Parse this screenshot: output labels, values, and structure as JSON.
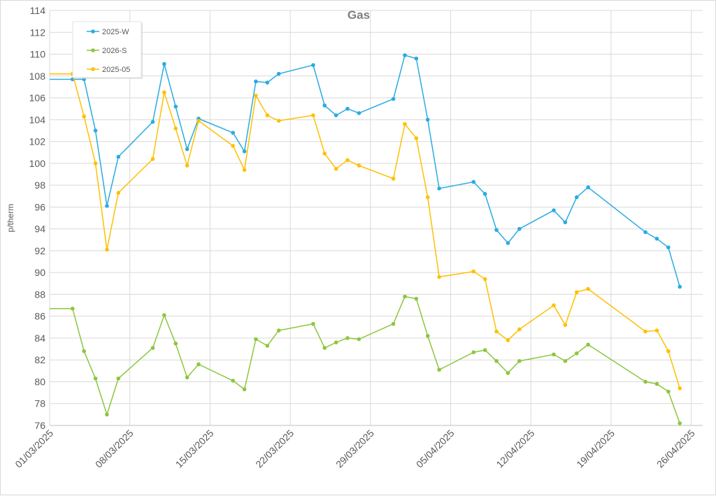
{
  "chart_data": {
    "type": "line",
    "title": "Gas",
    "ylabel": "p/therm",
    "xlabel": "",
    "ylim": [
      76,
      114
    ],
    "yticks": [
      76,
      78,
      80,
      82,
      84,
      86,
      88,
      90,
      92,
      94,
      96,
      98,
      100,
      102,
      104,
      106,
      108,
      110,
      112,
      114
    ],
    "xlim": [
      "2025-03-01",
      "2025-04-27"
    ],
    "x_tick_labels": [
      "01/03/2025",
      "08/03/2025",
      "15/03/2025",
      "22/03/2025",
      "29/03/2025",
      "05/04/2025",
      "12/04/2025",
      "19/04/2025",
      "26/04/2025"
    ],
    "x_tick_dates": [
      "2025-03-01",
      "2025-03-08",
      "2025-03-15",
      "2025-03-22",
      "2025-03-29",
      "2025-04-05",
      "2025-04-12",
      "2025-04-19",
      "2025-04-26"
    ],
    "grid": true,
    "legend_position": "top-left",
    "series": [
      {
        "name": "2025-W",
        "color": "#29abe2",
        "points": [
          {
            "x": "2025-03-03",
            "y": 107.7
          },
          {
            "x": "2025-03-04",
            "y": 107.7
          },
          {
            "x": "2025-03-05",
            "y": 103.0
          },
          {
            "x": "2025-03-06",
            "y": 96.1
          },
          {
            "x": "2025-03-07",
            "y": 100.6
          },
          {
            "x": "2025-03-10",
            "y": 103.8
          },
          {
            "x": "2025-03-11",
            "y": 109.1
          },
          {
            "x": "2025-03-12",
            "y": 105.2
          },
          {
            "x": "2025-03-13",
            "y": 101.3
          },
          {
            "x": "2025-03-14",
            "y": 104.1
          },
          {
            "x": "2025-03-17",
            "y": 102.8
          },
          {
            "x": "2025-03-18",
            "y": 101.1
          },
          {
            "x": "2025-03-19",
            "y": 107.5
          },
          {
            "x": "2025-03-20",
            "y": 107.4
          },
          {
            "x": "2025-03-21",
            "y": 108.2
          },
          {
            "x": "2025-03-24",
            "y": 109.0
          },
          {
            "x": "2025-03-25",
            "y": 105.3
          },
          {
            "x": "2025-03-26",
            "y": 104.4
          },
          {
            "x": "2025-03-27",
            "y": 105.0
          },
          {
            "x": "2025-03-28",
            "y": 104.6
          },
          {
            "x": "2025-03-31",
            "y": 105.9
          },
          {
            "x": "2025-04-01",
            "y": 109.9
          },
          {
            "x": "2025-04-02",
            "y": 109.6
          },
          {
            "x": "2025-04-03",
            "y": 104.0
          },
          {
            "x": "2025-04-04",
            "y": 97.7
          },
          {
            "x": "2025-04-07",
            "y": 98.3
          },
          {
            "x": "2025-04-08",
            "y": 97.2
          },
          {
            "x": "2025-04-09",
            "y": 93.9
          },
          {
            "x": "2025-04-10",
            "y": 92.7
          },
          {
            "x": "2025-04-11",
            "y": 94.0
          },
          {
            "x": "2025-04-14",
            "y": 95.7
          },
          {
            "x": "2025-04-15",
            "y": 94.6
          },
          {
            "x": "2025-04-16",
            "y": 96.9
          },
          {
            "x": "2025-04-17",
            "y": 97.8
          },
          {
            "x": "2025-04-22",
            "y": 93.7
          },
          {
            "x": "2025-04-23",
            "y": 93.1
          },
          {
            "x": "2025-04-24",
            "y": 92.3
          },
          {
            "x": "2025-04-25",
            "y": 88.7
          }
        ]
      },
      {
        "name": "2026-S",
        "color": "#8cc63f",
        "points": [
          {
            "x": "2025-03-03",
            "y": 86.7
          },
          {
            "x": "2025-03-04",
            "y": 82.8
          },
          {
            "x": "2025-03-05",
            "y": 80.3
          },
          {
            "x": "2025-03-06",
            "y": 77.0
          },
          {
            "x": "2025-03-07",
            "y": 80.3
          },
          {
            "x": "2025-03-10",
            "y": 83.1
          },
          {
            "x": "2025-03-11",
            "y": 86.1
          },
          {
            "x": "2025-03-12",
            "y": 83.5
          },
          {
            "x": "2025-03-13",
            "y": 80.4
          },
          {
            "x": "2025-03-14",
            "y": 81.6
          },
          {
            "x": "2025-03-17",
            "y": 80.1
          },
          {
            "x": "2025-03-18",
            "y": 79.3
          },
          {
            "x": "2025-03-19",
            "y": 83.9
          },
          {
            "x": "2025-03-20",
            "y": 83.3
          },
          {
            "x": "2025-03-21",
            "y": 84.7
          },
          {
            "x": "2025-03-24",
            "y": 85.3
          },
          {
            "x": "2025-03-25",
            "y": 83.1
          },
          {
            "x": "2025-03-26",
            "y": 83.6
          },
          {
            "x": "2025-03-27",
            "y": 84.0
          },
          {
            "x": "2025-03-28",
            "y": 83.9
          },
          {
            "x": "2025-03-31",
            "y": 85.3
          },
          {
            "x": "2025-04-01",
            "y": 87.8
          },
          {
            "x": "2025-04-02",
            "y": 87.6
          },
          {
            "x": "2025-04-03",
            "y": 84.2
          },
          {
            "x": "2025-04-04",
            "y": 81.1
          },
          {
            "x": "2025-04-07",
            "y": 82.7
          },
          {
            "x": "2025-04-08",
            "y": 82.9
          },
          {
            "x": "2025-04-09",
            "y": 81.9
          },
          {
            "x": "2025-04-10",
            "y": 80.8
          },
          {
            "x": "2025-04-11",
            "y": 81.9
          },
          {
            "x": "2025-04-14",
            "y": 82.5
          },
          {
            "x": "2025-04-15",
            "y": 81.9
          },
          {
            "x": "2025-04-16",
            "y": 82.6
          },
          {
            "x": "2025-04-17",
            "y": 83.4
          },
          {
            "x": "2025-04-22",
            "y": 80.0
          },
          {
            "x": "2025-04-23",
            "y": 79.8
          },
          {
            "x": "2025-04-24",
            "y": 79.1
          },
          {
            "x": "2025-04-25",
            "y": 76.2
          }
        ]
      },
      {
        "name": "2025-05",
        "color": "#ffc000",
        "points": [
          {
            "x": "2025-03-03",
            "y": 108.2
          },
          {
            "x": "2025-03-04",
            "y": 104.3
          },
          {
            "x": "2025-03-05",
            "y": 100.0
          },
          {
            "x": "2025-03-06",
            "y": 92.1
          },
          {
            "x": "2025-03-07",
            "y": 97.3
          },
          {
            "x": "2025-03-10",
            "y": 100.4
          },
          {
            "x": "2025-03-11",
            "y": 106.5
          },
          {
            "x": "2025-03-12",
            "y": 103.2
          },
          {
            "x": "2025-03-13",
            "y": 99.8
          },
          {
            "x": "2025-03-14",
            "y": 103.9
          },
          {
            "x": "2025-03-17",
            "y": 101.6
          },
          {
            "x": "2025-03-18",
            "y": 99.4
          },
          {
            "x": "2025-03-19",
            "y": 106.2
          },
          {
            "x": "2025-03-20",
            "y": 104.4
          },
          {
            "x": "2025-03-21",
            "y": 103.9
          },
          {
            "x": "2025-03-24",
            "y": 104.4
          },
          {
            "x": "2025-03-25",
            "y": 100.9
          },
          {
            "x": "2025-03-26",
            "y": 99.5
          },
          {
            "x": "2025-03-27",
            "y": 100.3
          },
          {
            "x": "2025-03-28",
            "y": 99.8
          },
          {
            "x": "2025-03-31",
            "y": 98.6
          },
          {
            "x": "2025-04-01",
            "y": 103.6
          },
          {
            "x": "2025-04-02",
            "y": 102.3
          },
          {
            "x": "2025-04-03",
            "y": 96.9
          },
          {
            "x": "2025-04-04",
            "y": 89.6
          },
          {
            "x": "2025-04-07",
            "y": 90.1
          },
          {
            "x": "2025-04-08",
            "y": 89.4
          },
          {
            "x": "2025-04-09",
            "y": 84.6
          },
          {
            "x": "2025-04-10",
            "y": 83.8
          },
          {
            "x": "2025-04-11",
            "y": 84.8
          },
          {
            "x": "2025-04-14",
            "y": 87.0
          },
          {
            "x": "2025-04-15",
            "y": 85.2
          },
          {
            "x": "2025-04-16",
            "y": 88.2
          },
          {
            "x": "2025-04-17",
            "y": 88.5
          },
          {
            "x": "2025-04-22",
            "y": 84.6
          },
          {
            "x": "2025-04-23",
            "y": 84.7
          },
          {
            "x": "2025-04-24",
            "y": 82.8
          },
          {
            "x": "2025-04-25",
            "y": 79.4
          }
        ]
      }
    ]
  }
}
